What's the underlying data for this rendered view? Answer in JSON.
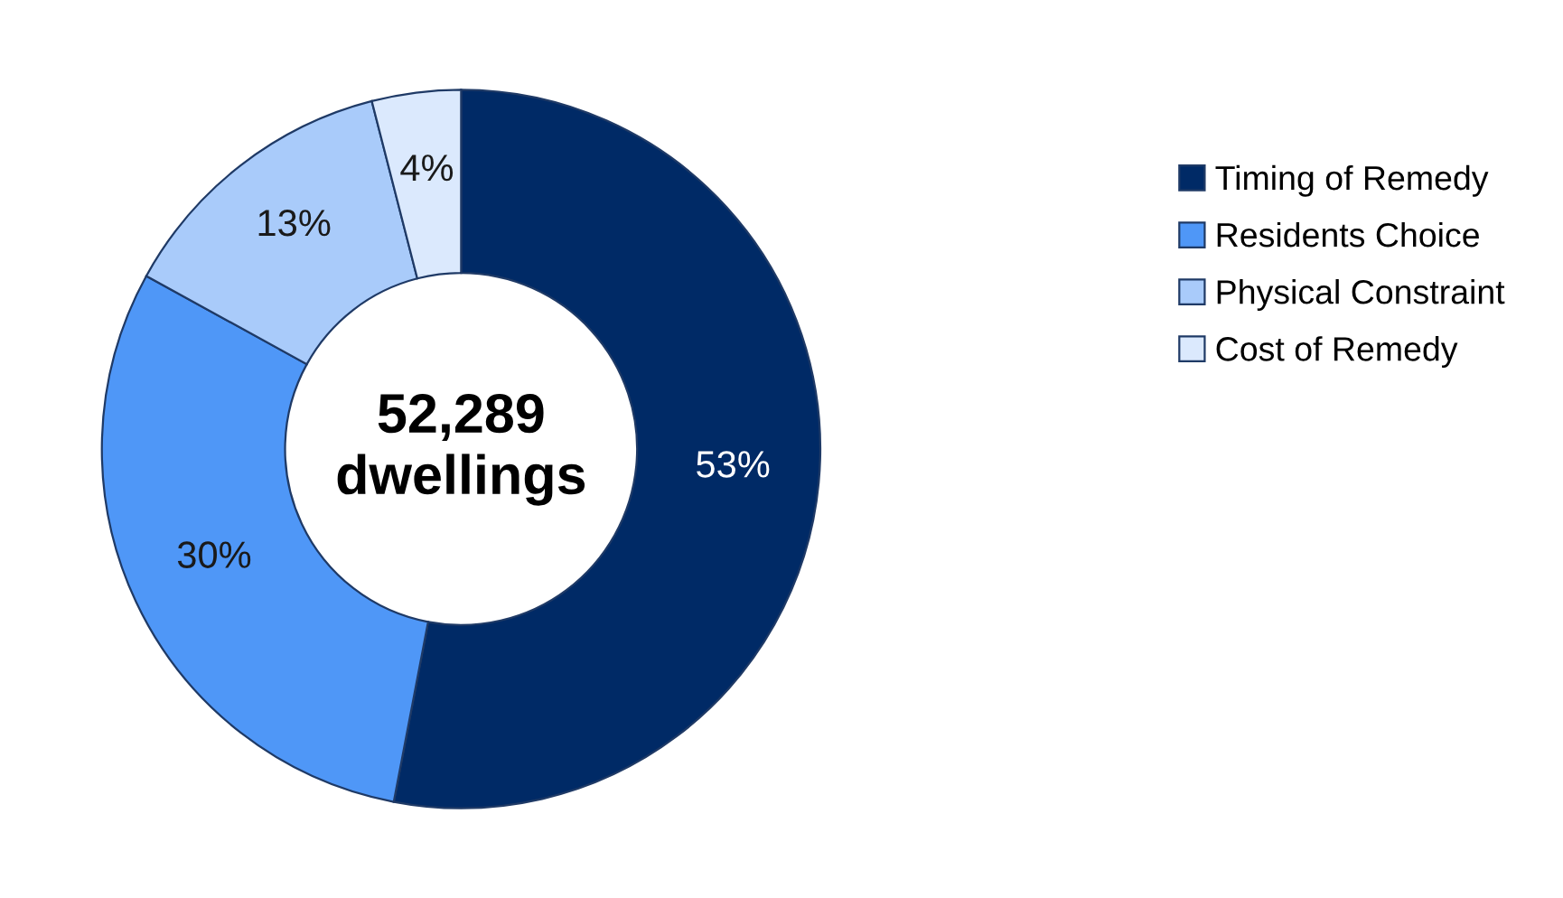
{
  "chart_data": {
    "type": "donut",
    "categories": [
      "Timing of Remedy",
      "Residents Choice",
      "Physical Constraint",
      "Cost of Remedy"
    ],
    "values": [
      53,
      30,
      13,
      4
    ],
    "colors": [
      "#002a66",
      "#4f97f7",
      "#a9cbfa",
      "#dbe9fd"
    ],
    "value_labels": [
      "53%",
      "30%",
      "13%",
      "4%"
    ],
    "annotations": [
      "52,289\ndwellings"
    ],
    "legend": "right"
  }
}
